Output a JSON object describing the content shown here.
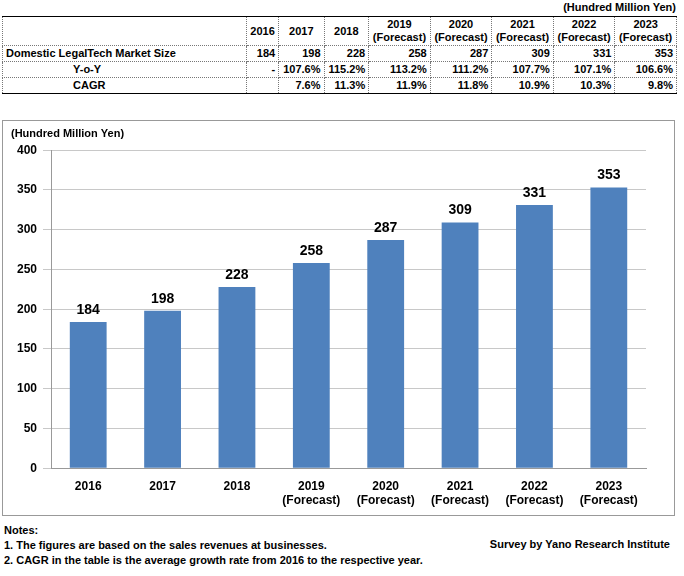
{
  "table": {
    "unit": "(Hundred Million Yen)",
    "columns": [
      "2016",
      "2017",
      "2018",
      "2019\n(Forecast)",
      "2020\n(Forecast)",
      "2021\n(Forecast)",
      "2022\n(Forecast)",
      "2023\n(Forecast)"
    ],
    "rows": [
      {
        "label": "Domestic LegalTech Market Size",
        "cells": [
          "184",
          "198",
          "228",
          "258",
          "287",
          "309",
          "331",
          "353"
        ]
      },
      {
        "label": "Y-o-Y",
        "cells": [
          "-",
          "107.6%",
          "115.2%",
          "113.2%",
          "111.2%",
          "107.7%",
          "107.1%",
          "106.6%"
        ]
      },
      {
        "label": "CAGR",
        "cells": [
          null,
          "7.6%",
          "11.3%",
          "11.9%",
          "11.8%",
          "10.9%",
          "10.3%",
          "9.8%"
        ]
      }
    ]
  },
  "chart_data": {
    "type": "bar",
    "ylabel": "(Hundred Million Yen)",
    "categories": [
      "2016",
      "2017",
      "2018",
      "2019\n(Forecast)",
      "2020\n(Forecast)",
      "2021\n(Forecast)",
      "2022\n(Forecast)",
      "2023\n(Forecast)"
    ],
    "values": [
      184,
      198,
      228,
      258,
      287,
      309,
      331,
      353
    ],
    "color": "#4f81bd",
    "ylim": [
      0,
      400
    ],
    "yticks": [
      0,
      50,
      100,
      150,
      200,
      250,
      300,
      350,
      400
    ],
    "grid": true,
    "data_labels": true
  },
  "notes": [
    "Notes:",
    "1. The figures are based on the sales revenues at businesses.",
    "2. CAGR in the table is the average growth rate from 2016 to the respective year."
  ],
  "source": "Survey by Yano Research Institute"
}
